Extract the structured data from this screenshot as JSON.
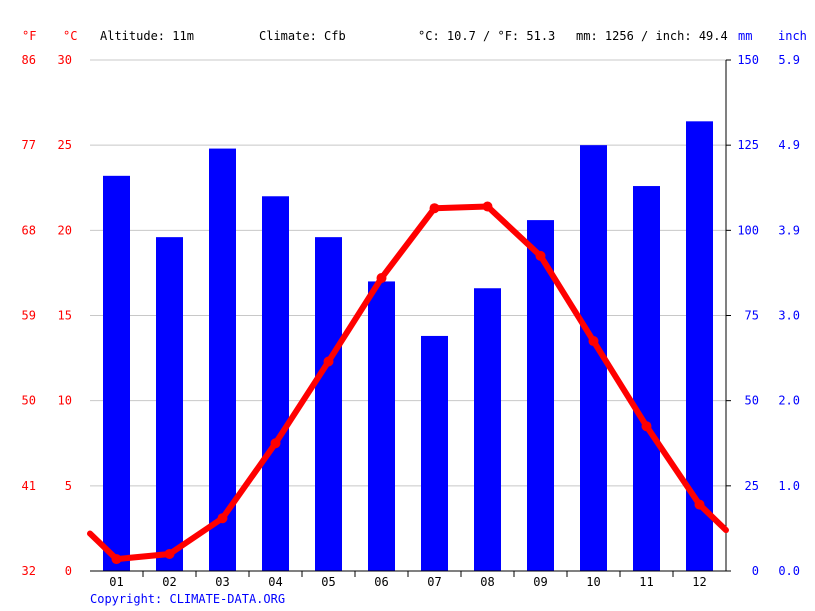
{
  "header": {
    "unit_f": "°F",
    "unit_c": "°C",
    "altitude": "Altitude: 11m",
    "climate": "Climate: Cfb",
    "temp_avg": "°C: 10.7 / °F: 51.3",
    "precip_total": "mm: 1256 / inch: 49.4",
    "unit_mm": "mm",
    "unit_inch": "inch"
  },
  "copyright": "Copyright: CLIMATE-DATA.ORG",
  "colors": {
    "temperature": "#ff0000",
    "precipitation": "#0000ff",
    "grid": "#c8c8c8"
  },
  "chart_data": {
    "type": "bar",
    "categories": [
      "01",
      "02",
      "03",
      "04",
      "05",
      "06",
      "07",
      "08",
      "09",
      "10",
      "11",
      "12"
    ],
    "series": [
      {
        "type": "bar",
        "unit": "mm",
        "axis": "right",
        "values": [
          116,
          98,
          124,
          110,
          98,
          85,
          69,
          83,
          103,
          125,
          113,
          132
        ]
      },
      {
        "type": "line",
        "unit": "°C",
        "axis": "left",
        "values": [
          0.7,
          1.0,
          3.1,
          7.5,
          12.3,
          17.2,
          21.3,
          21.4,
          18.5,
          13.5,
          8.5,
          3.9
        ],
        "start_value": 2.2,
        "end_value": 2.4
      }
    ],
    "axes": {
      "celsius": {
        "range": [
          0,
          30
        ],
        "ticks": [
          "0",
          "5",
          "10",
          "15",
          "20",
          "25",
          "30"
        ]
      },
      "fahrenheit": {
        "range": [
          32,
          86
        ],
        "ticks": [
          "32",
          "41",
          "50",
          "59",
          "68",
          "77",
          "86"
        ]
      },
      "mm": {
        "range": [
          0,
          150
        ],
        "ticks": [
          "0",
          "25",
          "50",
          "75",
          "100",
          "125",
          "150"
        ]
      },
      "inch": {
        "range": [
          0,
          5.9
        ],
        "ticks": [
          "0.0",
          "1.0",
          "2.0",
          "3.0",
          "3.9",
          "4.9",
          "5.9"
        ]
      }
    },
    "grid": true
  }
}
